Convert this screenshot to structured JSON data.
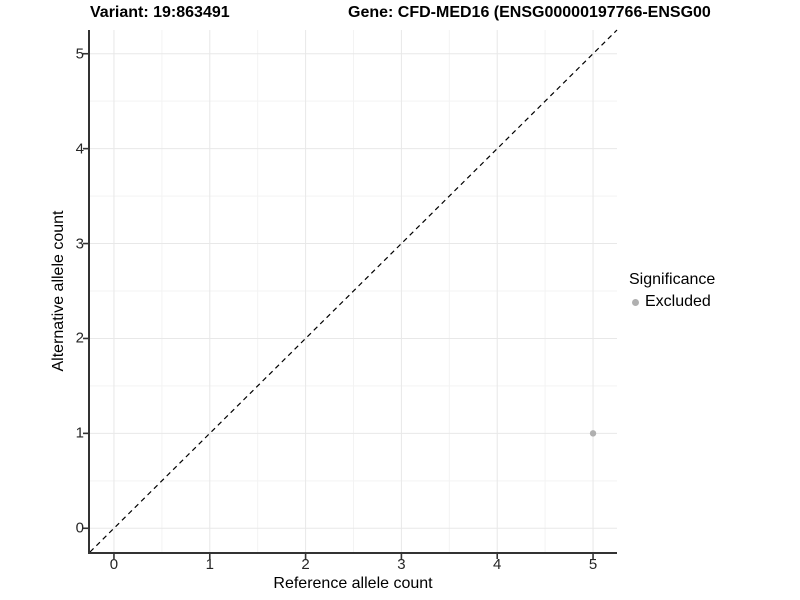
{
  "chart_data": {
    "type": "scatter",
    "title_left": "Variant: 19:863491",
    "title_right": "Gene: CFD-MED16 (ENSG00000197766-ENSG00",
    "xlabel": "Reference allele count",
    "ylabel": "Alternative allele count",
    "xlim": [
      -0.25,
      5.25
    ],
    "ylim": [
      -0.25,
      5.25
    ],
    "x_ticks": [
      0,
      1,
      2,
      3,
      4,
      5
    ],
    "y_ticks": [
      0,
      1,
      2,
      3,
      4,
      5
    ],
    "x_minor": [
      0.5,
      1.5,
      2.5,
      3.5,
      4.5
    ],
    "y_minor": [
      0.5,
      1.5,
      2.5,
      3.5,
      4.5
    ],
    "grid": true,
    "identity_line": {
      "style": "dashed",
      "from": [
        -0.25,
        -0.25
      ],
      "to": [
        5.25,
        5.25
      ],
      "color": "#000000"
    },
    "series": [
      {
        "name": "Excluded",
        "color": "#b0b0b0",
        "points": [
          {
            "x": 5,
            "y": 1
          }
        ]
      }
    ],
    "legend": {
      "position": "right",
      "title": "Significance",
      "items": [
        {
          "label": "Excluded",
          "color": "#b0b0b0"
        }
      ]
    },
    "colors": {
      "grid_major": "#e8e8e8",
      "grid_minor": "#f3f3f3",
      "axis_line": "#333333",
      "tick_mark": "#333333",
      "point": "#b0b0b0",
      "background": "#ffffff"
    }
  }
}
